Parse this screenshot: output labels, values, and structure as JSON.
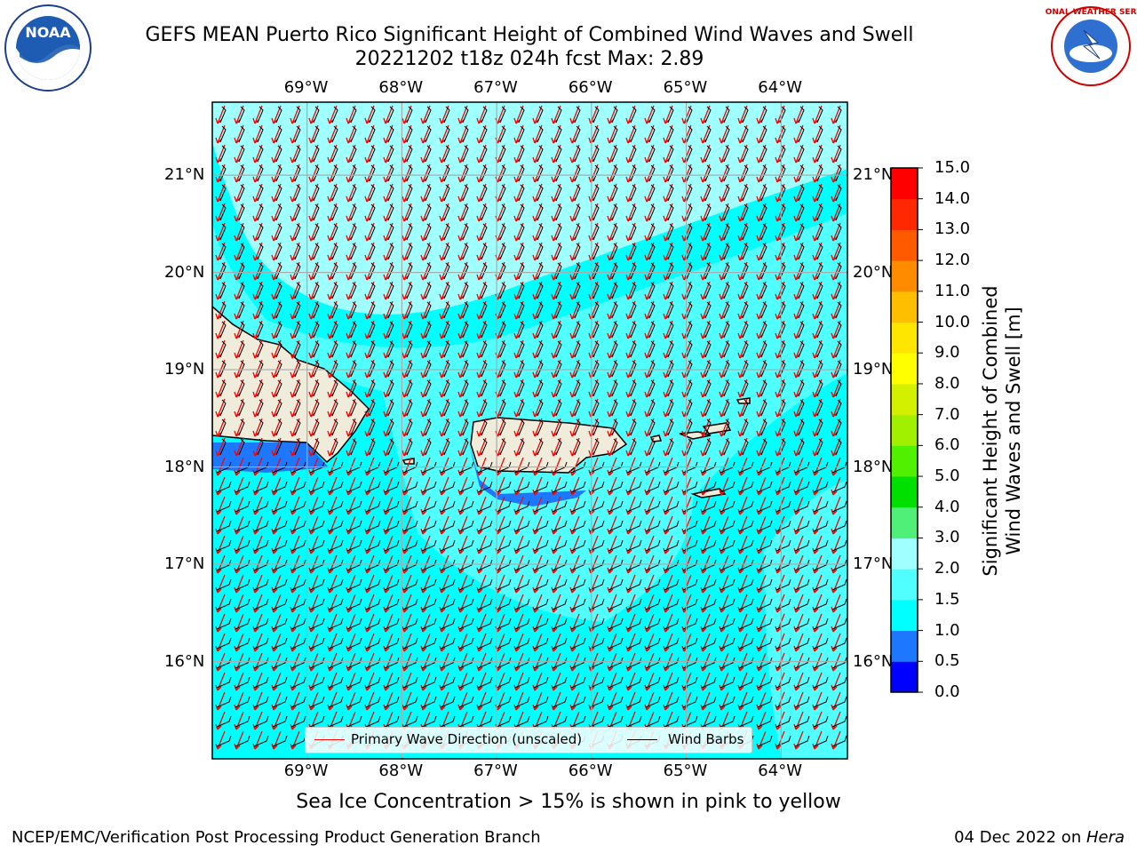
{
  "title": {
    "line1": "GEFS MEAN Puerto Rico Significant Height of Combined Wind Waves and Swell",
    "line2": "20221202 t18z 024h fcst   Max: 2.89"
  },
  "subtitle": "Sea Ice Concentration > 15% is shown in pink to yellow",
  "footer": {
    "left": "NCEP/EMC/Verification Post Processing Product Generation Branch",
    "right_prefix": "04 Dec 2022 on ",
    "right_host": "Hera"
  },
  "logos": {
    "noaa": {
      "text": "NOAA",
      "ring_text": "NATIONAL OCEANIC AND ATMOSPHERIC ADMINISTRATION",
      "ring_text_bottom": "U.S. DEPARTMENT OF COMMERCE"
    },
    "nws": {
      "ring_text": "NATIONAL WEATHER SERVICE"
    }
  },
  "map": {
    "lon_labels": [
      "69°W",
      "68°W",
      "67°W",
      "66°W",
      "65°W",
      "64°W"
    ],
    "lat_labels": [
      "21°N",
      "20°N",
      "19°N",
      "18°N",
      "17°N",
      "16°N"
    ],
    "lon_extent": [
      -70.0,
      -63.3
    ],
    "lat_extent": [
      15.0,
      21.75
    ]
  },
  "legend": {
    "wave_dir": "Primary Wave Direction (unscaled)",
    "wind_barbs": "Wind Barbs",
    "wave_dir_color": "#ff0000",
    "wind_barbs_color": "#000000"
  },
  "colorbar": {
    "title_line1": "Significant Height of Combined",
    "title_line2": "Wind Waves and Swell [m]",
    "ticks": [
      "0.0",
      "0.5",
      "1.0",
      "1.5",
      "2.0",
      "3.0",
      "4.0",
      "5.0",
      "6.0",
      "7.0",
      "8.0",
      "9.0",
      "10.0",
      "11.0",
      "12.0",
      "13.0",
      "14.0",
      "15.0"
    ],
    "colors": [
      "#0000ff",
      "#1e78ff",
      "#00ffff",
      "#50ffff",
      "#a0ffff",
      "#50f078",
      "#00e000",
      "#50f000",
      "#a0f000",
      "#d2f000",
      "#ffff00",
      "#ffe600",
      "#ffbe00",
      "#ff8c00",
      "#ff5a00",
      "#ff2800",
      "#ff0000"
    ]
  },
  "field_colors": {
    "band_0_5_1": "#1e78ff",
    "band_1_1_5": "#00ffff",
    "band_1_5_2": "#50ffff",
    "band_2_3": "#a0ffff",
    "land": "#efecdc"
  }
}
